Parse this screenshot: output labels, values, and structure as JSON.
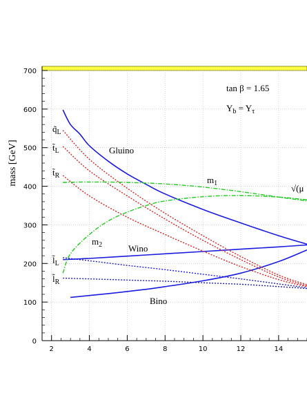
{
  "chart_data": {
    "type": "line",
    "xlabel": "",
    "ylabel": "mass [GeV]",
    "xlim": [
      1.5,
      15.5
    ],
    "ylim": [
      0,
      700
    ],
    "xticks": [
      2,
      4,
      6,
      8,
      10,
      12,
      14
    ],
    "yticks": [
      0,
      100,
      200,
      300,
      400,
      500,
      600,
      700
    ],
    "grid": true,
    "annotations": {
      "tanb": "tan β = 1.65",
      "yb": "Y",
      "yb_sub": "b",
      "yb_eq": " = Y",
      "yb_tau": "τ",
      "sqrt_mu": "√(μ",
      "m1": "m",
      "m1_sub": "1",
      "m2": "m",
      "m2_sub": "2",
      "gluino": "Gluino",
      "wino": "Wino",
      "bino": "Bino",
      "qL": "q̃",
      "qL_sub": "L",
      "tL": "t̃",
      "tL_sub": "L",
      "tR": "t̃",
      "tR_sub": "R",
      "lL": "l̃",
      "lL_sub": "L",
      "lR": "l̃",
      "lR_sub": "R"
    },
    "series": [
      {
        "key": "gluino",
        "color": "#1a1adf",
        "style": "solid",
        "x": [
          2.6,
          3.0,
          3.5,
          4.0,
          5.0,
          6.0,
          7.0,
          8.0,
          10.0,
          12.0,
          14.0,
          15.5
        ],
        "y": [
          598,
          560,
          535,
          505,
          465,
          432,
          405,
          380,
          340,
          305,
          272,
          250
        ]
      },
      {
        "key": "wino",
        "color": "#1a1adf",
        "style": "solid",
        "x": [
          2.6,
          4.0,
          6.0,
          8.0,
          10.0,
          12.0,
          14.0,
          15.5
        ],
        "y": [
          210,
          213,
          219,
          225,
          231,
          237,
          243,
          248
        ]
      },
      {
        "key": "bino",
        "color": "#1a1adf",
        "style": "solid",
        "x": [
          3.0,
          5.0,
          7.0,
          8.0,
          10.0,
          12.0,
          14.0,
          15.5
        ],
        "y": [
          112,
          122,
          133,
          140,
          155,
          175,
          205,
          235
        ]
      },
      {
        "key": "qL",
        "color": "#e02020",
        "style": "dotted",
        "x": [
          2.6,
          4.0,
          6.0,
          8.0,
          10.0,
          12.0,
          14.0,
          15.5
        ],
        "y": [
          545,
          470,
          395,
          330,
          272,
          218,
          170,
          145
        ]
      },
      {
        "key": "tL",
        "color": "#e02020",
        "style": "dotted",
        "x": [
          2.6,
          4.0,
          6.0,
          8.0,
          10.0,
          12.0,
          14.0,
          15.5
        ],
        "y": [
          503,
          440,
          375,
          315,
          260,
          210,
          165,
          142
        ]
      },
      {
        "key": "tR",
        "color": "#e02020",
        "style": "dotted",
        "x": [
          2.6,
          4.0,
          6.0,
          8.0,
          10.0,
          12.0,
          14.0,
          15.5
        ],
        "y": [
          428,
          375,
          320,
          275,
          232,
          192,
          158,
          140
        ]
      },
      {
        "key": "lL",
        "color": "#1a1adf",
        "style": "dotted",
        "x": [
          2.6,
          4.0,
          6.0,
          8.0,
          10.0,
          12.0,
          14.0,
          15.5
        ],
        "y": [
          215,
          207,
          195,
          184,
          172,
          160,
          147,
          137
        ]
      },
      {
        "key": "lR",
        "color": "#1a1adf",
        "style": "dotted",
        "x": [
          2.6,
          4.0,
          6.0,
          8.0,
          10.0,
          12.0,
          14.0,
          15.5
        ],
        "y": [
          162,
          160,
          157,
          154,
          150,
          146,
          140,
          135
        ]
      },
      {
        "key": "m1",
        "color": "#22cc22",
        "style": "dashdot",
        "x": [
          2.6,
          4.0,
          6.0,
          8.0,
          10.0,
          12.0,
          14.0,
          15.5
        ],
        "y": [
          410,
          411,
          410,
          406,
          398,
          386,
          372,
          362
        ]
      },
      {
        "key": "sqrtmu",
        "color": "#22cc22",
        "style": "dashdot",
        "x": [
          2.6,
          3.0,
          4.0,
          5.0,
          6.0,
          7.0,
          8.0,
          10.0,
          12.0,
          14.0,
          15.5
        ],
        "y": [
          175,
          225,
          275,
          310,
          333,
          350,
          362,
          373,
          376,
          372,
          365
        ]
      }
    ]
  }
}
